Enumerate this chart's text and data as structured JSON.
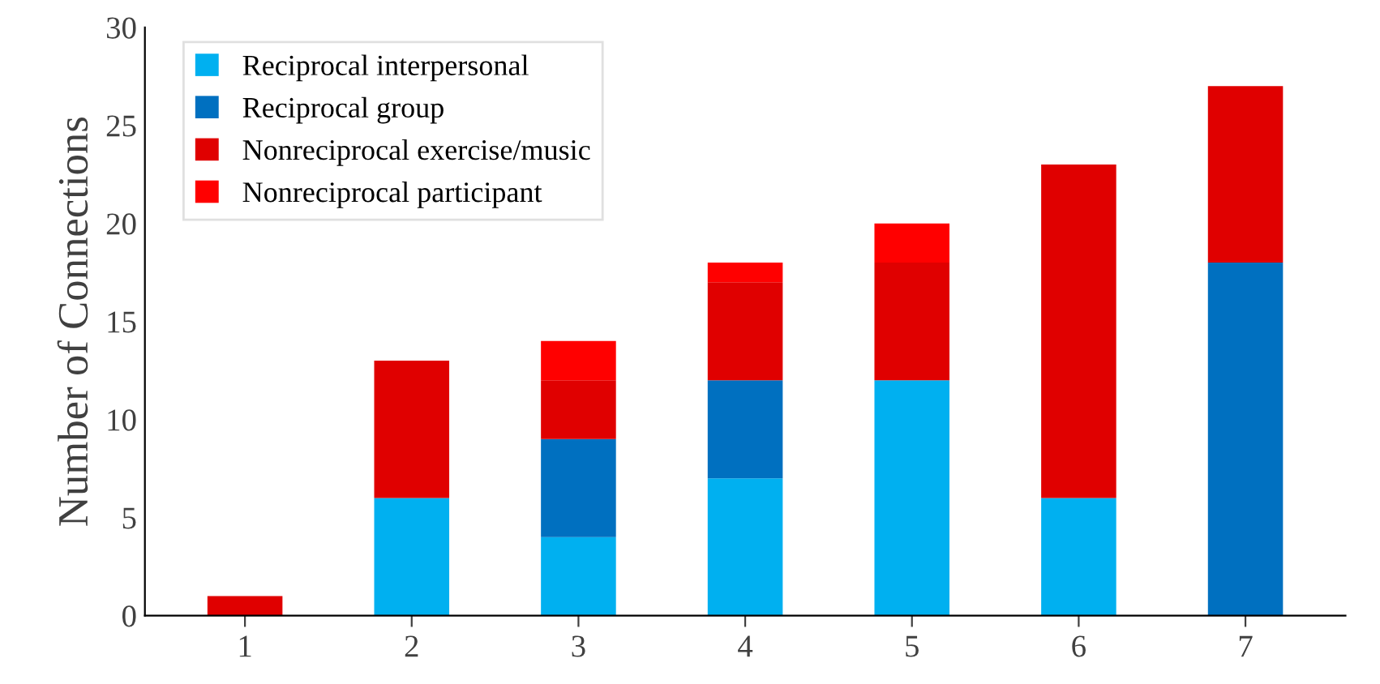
{
  "chart_data": {
    "type": "bar",
    "stacked": true,
    "ylabel": "Number of Connections",
    "categories": [
      "1",
      "2",
      "3",
      "4",
      "5",
      "6",
      "7"
    ],
    "series": [
      {
        "name": "Reciprocal interpersonal",
        "color": "#00b0f0",
        "values": [
          0,
          6,
          4,
          7,
          12,
          6,
          0
        ]
      },
      {
        "name": "Reciprocal group",
        "color": "#0070c0",
        "values": [
          0,
          0,
          5,
          5,
          0,
          0,
          18
        ]
      },
      {
        "name": "Nonreciprocal exercise/music",
        "color": "#e00000",
        "values": [
          1,
          7,
          3,
          5,
          6,
          17,
          9
        ]
      },
      {
        "name": "Nonreciprocal participant",
        "color": "#ff0000",
        "values": [
          0,
          0,
          2,
          1,
          2,
          0,
          0
        ]
      }
    ],
    "ylim": [
      0,
      30
    ],
    "yticks": [
      0,
      5,
      10,
      15,
      20,
      25,
      30
    ],
    "grid": false,
    "legend": "top left"
  }
}
